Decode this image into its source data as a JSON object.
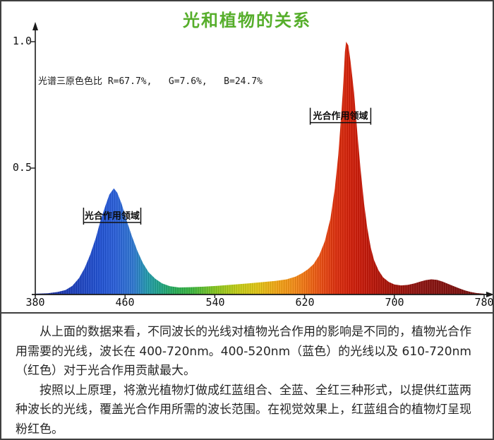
{
  "chart_data": {
    "type": "area",
    "title": "光和植物的关系",
    "title_color": "#56ae2b",
    "xlim": [
      380,
      780
    ],
    "ylim": [
      0,
      1.05
    ],
    "x_tick_values": [
      380,
      460,
      540,
      620,
      700,
      780
    ],
    "x_tick_labels": [
      "380",
      "460",
      "540",
      "620",
      "700",
      "780"
    ],
    "y_tick_values": [
      1.0,
      0.5
    ],
    "y_tick_labels": [
      "1.0",
      "0.5"
    ],
    "grid": false,
    "legend": "none",
    "rgb_ratio_text": "光谱三原色色比 R=67.7%,   G=7.6%,   B=24.7%",
    "annotations": [
      {
        "label": "光合作用领域",
        "from_nm": 423,
        "to_nm": 474,
        "at_value": 0.285
      },
      {
        "label": "光合作用领域",
        "from_nm": 625,
        "to_nm": 679,
        "at_value": 0.68
      }
    ],
    "points": [
      [
        380,
        0.003
      ],
      [
        391,
        0.005
      ],
      [
        400,
        0.01
      ],
      [
        407,
        0.018
      ],
      [
        413,
        0.034
      ],
      [
        419,
        0.065
      ],
      [
        424,
        0.105
      ],
      [
        429,
        0.158
      ],
      [
        434,
        0.225
      ],
      [
        438,
        0.29
      ],
      [
        442,
        0.345
      ],
      [
        446,
        0.395
      ],
      [
        450,
        0.42
      ],
      [
        453,
        0.403
      ],
      [
        457,
        0.358
      ],
      [
        461,
        0.298
      ],
      [
        466,
        0.232
      ],
      [
        471,
        0.172
      ],
      [
        476,
        0.124
      ],
      [
        481,
        0.088
      ],
      [
        487,
        0.062
      ],
      [
        493,
        0.044
      ],
      [
        500,
        0.033
      ],
      [
        508,
        0.028
      ],
      [
        518,
        0.029
      ],
      [
        530,
        0.031
      ],
      [
        542,
        0.034
      ],
      [
        556,
        0.039
      ],
      [
        570,
        0.044
      ],
      [
        582,
        0.049
      ],
      [
        594,
        0.054
      ],
      [
        604,
        0.06
      ],
      [
        612,
        0.071
      ],
      [
        618,
        0.085
      ],
      [
        623,
        0.1
      ],
      [
        628,
        0.12
      ],
      [
        633,
        0.155
      ],
      [
        638,
        0.21
      ],
      [
        643,
        0.3
      ],
      [
        647,
        0.42
      ],
      [
        650,
        0.55
      ],
      [
        652,
        0.67
      ],
      [
        654,
        0.8
      ],
      [
        655,
        0.88
      ],
      [
        656,
        0.96
      ],
      [
        657,
        1.0
      ],
      [
        659,
        0.985
      ],
      [
        661,
        0.92
      ],
      [
        664,
        0.8
      ],
      [
        667,
        0.64
      ],
      [
        670,
        0.49
      ],
      [
        673,
        0.36
      ],
      [
        676,
        0.26
      ],
      [
        679,
        0.185
      ],
      [
        682,
        0.135
      ],
      [
        686,
        0.095
      ],
      [
        690,
        0.068
      ],
      [
        695,
        0.05
      ],
      [
        700,
        0.04
      ],
      [
        706,
        0.036
      ],
      [
        712,
        0.038
      ],
      [
        718,
        0.044
      ],
      [
        723,
        0.051
      ],
      [
        728,
        0.057
      ],
      [
        733,
        0.06
      ],
      [
        738,
        0.058
      ],
      [
        743,
        0.051
      ],
      [
        748,
        0.042
      ],
      [
        753,
        0.033
      ],
      [
        758,
        0.024
      ],
      [
        763,
        0.016
      ],
      [
        768,
        0.01
      ],
      [
        773,
        0.006
      ],
      [
        778,
        0.004
      ],
      [
        780,
        0.003
      ]
    ],
    "gradient": [
      {
        "nm": 380,
        "color": "#1e2b96"
      },
      {
        "nm": 410,
        "color": "#1c3cb6"
      },
      {
        "nm": 440,
        "color": "#2153d4"
      },
      {
        "nm": 452,
        "color": "#2a5fd8"
      },
      {
        "nm": 468,
        "color": "#2e78cf"
      },
      {
        "nm": 480,
        "color": "#2199ab"
      },
      {
        "nm": 492,
        "color": "#1fa383"
      },
      {
        "nm": 505,
        "color": "#27ab55"
      },
      {
        "nm": 520,
        "color": "#3cb43e"
      },
      {
        "nm": 540,
        "color": "#84c41e"
      },
      {
        "nm": 560,
        "color": "#c2cc16"
      },
      {
        "nm": 578,
        "color": "#e0c414"
      },
      {
        "nm": 595,
        "color": "#f0a414"
      },
      {
        "nm": 610,
        "color": "#f28c16"
      },
      {
        "nm": 622,
        "color": "#ef6f12"
      },
      {
        "nm": 635,
        "color": "#e84c12"
      },
      {
        "nm": 648,
        "color": "#dc2e0c"
      },
      {
        "nm": 660,
        "color": "#d21f08"
      },
      {
        "nm": 672,
        "color": "#c61808"
      },
      {
        "nm": 685,
        "color": "#b41408"
      },
      {
        "nm": 700,
        "color": "#a01208"
      },
      {
        "nm": 720,
        "color": "#8e1310"
      },
      {
        "nm": 740,
        "color": "#84120f"
      },
      {
        "nm": 760,
        "color": "#7c100e"
      },
      {
        "nm": 780,
        "color": "#740f0d"
      }
    ]
  },
  "explanation": {
    "paragraphs": [
      "从上面的数据来看，不同波长的光线对植物光合作用的影响是不同的，植物光合作用需要的光线，波长在 400-720nm。400-520nm（蓝色）的光线以及 610-720nm（红色）对于光合作用贡献最大。",
      "按照以上原理，将激光植物灯做成红蓝组合、全蓝、全红三种形式，以提供红蓝两种波长的光线，覆盖光合作用所需的波长范围。在视觉效果上，红蓝组合的植物灯呈现粉红色。"
    ]
  }
}
